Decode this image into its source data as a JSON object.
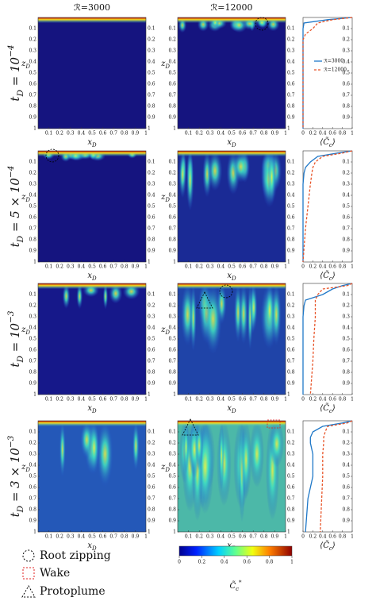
{
  "columns": [
    "ℛ=3000",
    "ℛ=12000"
  ],
  "rows": [
    {
      "t": "t",
      "sub": "D",
      "eq": " = 10",
      "sup": "−4"
    },
    {
      "t": "t",
      "sub": "D",
      "eq": " = 5 × 10",
      "sup": "−4"
    },
    {
      "t": "t",
      "sub": "D",
      "eq": " = 10",
      "sup": "−3"
    },
    {
      "t": "t",
      "sub": "D",
      "eq": " = 3 × 10",
      "sup": "−3"
    }
  ],
  "panel_axes": {
    "xlabel": {
      "main": "x",
      "sub": "D"
    },
    "zlabel": {
      "main": "z",
      "sub": "D"
    },
    "xlim": [
      0,
      1
    ],
    "zlim": [
      0,
      1
    ],
    "xticks": [
      0.1,
      0.2,
      0.3,
      0.4,
      0.5,
      0.6,
      0.7,
      0.8,
      0.9,
      1
    ],
    "zticks": [
      0.1,
      0.2,
      0.3,
      0.4,
      0.5,
      0.6,
      0.7,
      0.8,
      0.9,
      1
    ]
  },
  "chart_data": {
    "type": "line",
    "xlabel": {
      "main": "⟨C̃",
      "sub": "c",
      "end": "⟩"
    },
    "xlim": [
      0,
      1
    ],
    "xticks": [
      0,
      0.2,
      0.4,
      0.6,
      0.8,
      1
    ],
    "zlim": [
      0,
      1
    ],
    "zticks": [
      0.1,
      0.2,
      0.3,
      0.4,
      0.5,
      0.6,
      0.7,
      0.8,
      0.9
    ],
    "z": [
      0,
      0.02,
      0.05,
      0.1,
      0.15,
      0.2,
      0.3,
      0.5,
      0.7,
      1
    ],
    "series": [
      {
        "name": "ℛ=3000",
        "color": "#1f78c8",
        "style": "solid"
      },
      {
        "name": "ℛ=12000",
        "color": "#e8552a",
        "style": "dashed"
      }
    ],
    "panels": [
      [
        [
          1,
          0.5,
          0.02,
          0,
          0,
          0,
          0,
          0,
          0,
          0
        ],
        [
          1,
          0.6,
          0.3,
          0.2,
          0.05,
          0,
          0,
          0,
          0,
          0
        ]
      ],
      [
        [
          1,
          0.7,
          0.3,
          0.15,
          0.05,
          0.02,
          0,
          0,
          0,
          0
        ],
        [
          1,
          0.8,
          0.4,
          0.25,
          0.2,
          0.18,
          0.15,
          0.1,
          0.05,
          0
        ]
      ],
      [
        [
          1,
          0.8,
          0.6,
          0.4,
          0.05,
          0.02,
          0,
          0,
          0,
          0
        ],
        [
          1,
          0.9,
          0.4,
          0.3,
          0.25,
          0.25,
          0.25,
          0.22,
          0.2,
          0.15
        ]
      ],
      [
        [
          1,
          0.8,
          0.4,
          0.2,
          0.15,
          0.15,
          0.2,
          0.2,
          0.1,
          0.05
        ],
        [
          1,
          0.9,
          0.5,
          0.45,
          0.42,
          0.42,
          0.4,
          0.4,
          0.38,
          0.35
        ]
      ]
    ]
  },
  "colorbar": {
    "lim": [
      0,
      1
    ],
    "ticks": [
      0,
      0.2,
      0.4,
      0.6,
      0.8,
      1
    ],
    "label": {
      "main": "C̃",
      "sub": "c",
      "sup": "*"
    }
  },
  "legend": [
    "Root zipping",
    "Wake",
    "Protoplume"
  ]
}
